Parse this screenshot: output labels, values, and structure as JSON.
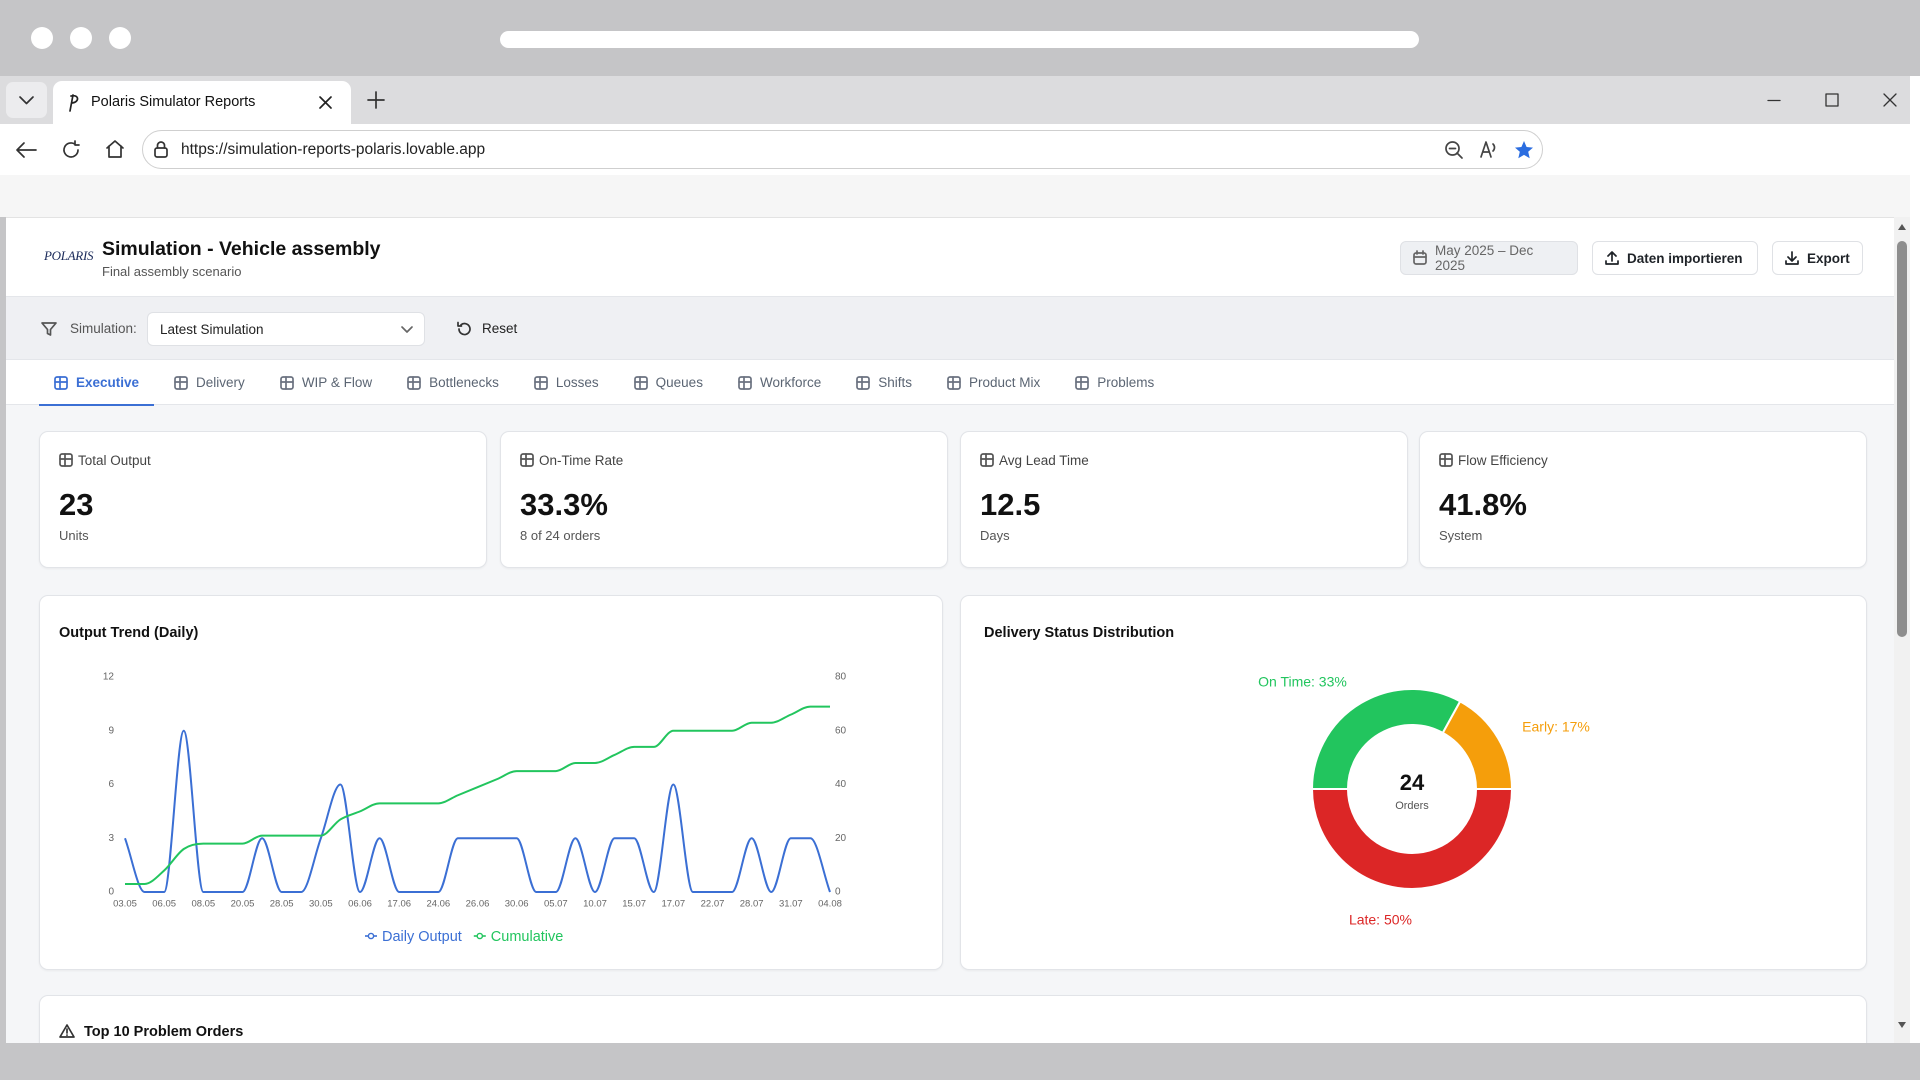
{
  "browser": {
    "tab_title": "Polaris Simulator Reports",
    "url": "https://simulation-reports-polaris.lovable.app"
  },
  "header": {
    "logo": "POLARIS",
    "title": "Simulation - Vehicle assembly",
    "subtitle": "Final assembly scenario",
    "date_range": "May 2025 – Dec 2025",
    "import_button": "Daten importieren",
    "export_button": "Export"
  },
  "filter": {
    "label": "Simulation:",
    "selected": "Latest Simulation",
    "reset": "Reset"
  },
  "tabs": [
    "Executive",
    "Delivery",
    "WIP & Flow",
    "Bottlenecks",
    "Losses",
    "Queues",
    "Workforce",
    "Shifts",
    "Product Mix",
    "Problems"
  ],
  "kpis": [
    {
      "label": "Total Output",
      "value": "23",
      "unit": "Units"
    },
    {
      "label": "On-Time Rate",
      "value": "33.3%",
      "unit": "8 of 24 orders"
    },
    {
      "label": "Avg Lead Time",
      "value": "12.5",
      "unit": "Days"
    },
    {
      "label": "Flow Efficiency",
      "value": "41.8%",
      "unit": "System"
    }
  ],
  "output_trend": {
    "type": "line",
    "title": "Output Trend (Daily)",
    "categories": [
      "03.05",
      null,
      "06.05",
      null,
      "08.05",
      null,
      "20.05",
      null,
      "28.05",
      null,
      "30.05",
      null,
      "06.06",
      null,
      "17.06",
      null,
      "24.06",
      null,
      "26.06",
      null,
      "30.06",
      null,
      "05.07",
      null,
      "10.07",
      null,
      "15.07",
      null,
      "17.07",
      null,
      "22.07",
      null,
      "28.07",
      null,
      "31.07",
      null,
      "04.08"
    ],
    "series": [
      {
        "name": "Daily Output",
        "color": "#3b6fd4",
        "values": [
          3,
          0,
          0,
          9,
          0,
          0,
          0,
          3,
          0,
          0,
          3,
          6,
          0,
          3,
          0,
          0,
          0,
          3,
          3,
          3,
          3,
          0,
          0,
          3,
          0,
          3,
          3,
          0,
          6,
          0,
          0,
          0,
          3,
          0,
          3,
          3,
          0
        ]
      },
      {
        "name": "Cumulative",
        "color": "#22c55e",
        "axis": "y2",
        "values": [
          3,
          3,
          8,
          16,
          18,
          18,
          18,
          21,
          21,
          21,
          21,
          27,
          30,
          33,
          33,
          33,
          33,
          36,
          39,
          42,
          45,
          45,
          45,
          48,
          48,
          51,
          54,
          54,
          60,
          60,
          60,
          60,
          63,
          63,
          66,
          69,
          69
        ]
      }
    ],
    "ylim": [
      0,
      12
    ],
    "yticks": [
      0,
      3,
      6,
      9,
      12
    ],
    "y2lim": [
      0,
      80
    ],
    "y2ticks": [
      0,
      20,
      40,
      60,
      80
    ]
  },
  "delivery_status": {
    "type": "pie",
    "title": "Delivery Status Distribution",
    "values": [
      33,
      17,
      50
    ],
    "value_labels": [
      "On Time: 33%",
      "Early: 17%",
      "Late: 50%"
    ],
    "colors": [
      "#22c55e",
      "#f59e0b",
      "#dc2626"
    ],
    "center_value": 24,
    "center_label": "Orders"
  },
  "problem_orders": {
    "title": "Top 10 Problem Orders"
  }
}
